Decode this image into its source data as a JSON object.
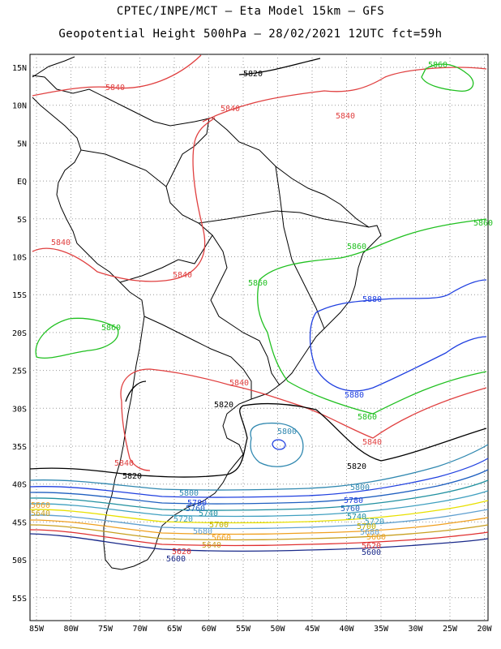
{
  "header": {
    "line1": "CPTEC/INPE/MCT –  Eta Model 15km – GFS",
    "line2": "Geopotential Height 500hPa – 28/02/2021 12UTC fct=59h"
  },
  "axes": {
    "lat_labels": [
      "15N",
      "10N",
      "5N",
      "EQ",
      "5S",
      "10S",
      "15S",
      "20S",
      "25S",
      "30S",
      "35S",
      "40S",
      "45S",
      "50S",
      "55S"
    ],
    "lon_labels": [
      "85W",
      "80W",
      "75W",
      "70W",
      "65W",
      "60W",
      "55W",
      "50W",
      "45W",
      "40W",
      "35W",
      "30W",
      "25W",
      "20W"
    ]
  },
  "colors": {
    "5580": "#1a2a8a",
    "5600": "#1a2a8a",
    "5620": "#e03030",
    "5640": "#c8a020",
    "5660": "#f0a020",
    "5680": "#60a0d0",
    "5700": "#e8e000",
    "5720": "#40a0c0",
    "5740": "#2090a0",
    "5760": "#2060c0",
    "5780": "#2040e0",
    "5800": "#3088b0",
    "5820": "#000000",
    "5840": "#e04040",
    "5860": "#20c020",
    "5880": "#2040e0"
  },
  "labels": {
    "l5820a": "5820",
    "l5840a": "5840",
    "l5840b": "5840",
    "l5840c": "5840",
    "l5860a": "5860",
    "l5860b": "5860",
    "l5860c": "5860",
    "l5860d": "5860",
    "l5840d": "5840",
    "l5840e": "5840",
    "l5880a": "5880",
    "l5860e": "5860",
    "l5840f": "5840",
    "l5820b": "5820",
    "l5800a": "5800",
    "l5880b": "5880",
    "l5860f": "5860",
    "l5840g": "5840",
    "l5820c": "5820",
    "l5840h": "5840",
    "l5820d": "5820",
    "l5800b": "5800",
    "l5800c": "5800",
    "l5780a": "5780",
    "l5780b": "5780",
    "l5760a": "5760",
    "l5760b": "5760",
    "l5740a": "5740",
    "l5740b": "5740",
    "l5720a": "5720",
    "l5720b": "5720",
    "l5700a": "5700",
    "l5700b": "5700",
    "l5680a": "5680",
    "l5680b": "5680",
    "l5660a": "5660",
    "l5660b": "5660",
    "l5640a": "5640",
    "l5640b": "5640",
    "l5620a": "5620",
    "l5620b": "5620",
    "l5600a": "5600",
    "l5600b": "5600",
    "l5660c": "5660"
  }
}
